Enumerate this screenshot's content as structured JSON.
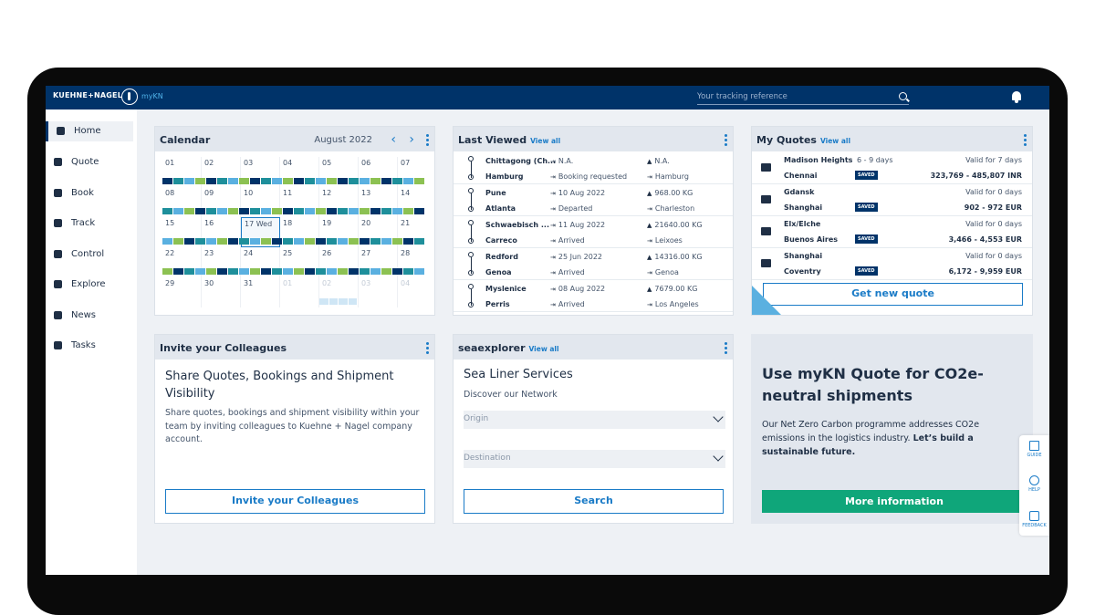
{
  "topbar": {
    "brand": "KUEHNE+NAGEL",
    "product": "myKN",
    "search_placeholder": "Your tracking reference"
  },
  "sidebar": {
    "items": [
      {
        "label": "Home",
        "icon": "home-icon",
        "active": true
      },
      {
        "label": "Quote",
        "icon": "calculator-icon"
      },
      {
        "label": "Book",
        "icon": "book-icon"
      },
      {
        "label": "Track",
        "icon": "track-icon"
      },
      {
        "label": "Control",
        "icon": "control-icon"
      },
      {
        "label": "Explore",
        "icon": "compass-icon"
      },
      {
        "label": "News",
        "icon": "news-icon"
      },
      {
        "label": "Tasks",
        "icon": "tasks-icon"
      }
    ]
  },
  "calendar": {
    "title": "Calendar",
    "month": "August 2022",
    "prev": "‹",
    "next": "›",
    "weeks": [
      [
        "01",
        "02",
        "03",
        "04",
        "05",
        "06",
        "07"
      ],
      [
        "08",
        "09",
        "10",
        "11",
        "12",
        "13",
        "14"
      ],
      [
        "15",
        "16",
        "17 Wed",
        "18",
        "19",
        "20",
        "21"
      ],
      [
        "22",
        "23",
        "24",
        "25",
        "26",
        "27",
        "28"
      ],
      [
        "29",
        "30",
        "31",
        "01",
        "02",
        "03",
        "04"
      ]
    ],
    "today": "17 Wed",
    "colors": {
      "dark": "#003369",
      "teal": "#1e8f9b",
      "light": "#5ab0e0",
      "green": "#8cc152"
    }
  },
  "last_viewed": {
    "title": "Last Viewed",
    "view_all": "View all",
    "rows": [
      {
        "from": "Chittagong (Ch...",
        "to": "Hamburg",
        "status1": "N.A.",
        "status2": "Booking requested",
        "right1": "N.A.",
        "right2": "Hamburg"
      },
      {
        "from": "Pune",
        "to": "Atlanta",
        "status1": "10 Aug 2022",
        "status2": "Departed",
        "right1": "968.00 KG",
        "right2": "Charleston"
      },
      {
        "from": "Schwaebisch ...",
        "to": "Carreco",
        "status1": "11 Aug 2022",
        "status2": "Arrived",
        "right1": "21640.00 KG",
        "right2": "Leixoes"
      },
      {
        "from": "Redford",
        "to": "Genoa",
        "status1": "25 Jun 2022",
        "status2": "Arrived",
        "right1": "14316.00 KG",
        "right2": "Genoa"
      },
      {
        "from": "Myslenice",
        "to": "Perris",
        "status1": "08 Aug 2022",
        "status2": "Arrived",
        "right1": "7679.00 KG",
        "right2": "Los Angeles"
      }
    ]
  },
  "quotes": {
    "title": "My Quotes",
    "view_all": "View all",
    "saved_label": "SAVED",
    "rows": [
      {
        "from": "Madison Heights",
        "to": "Chennai",
        "days": "6 - 9 days",
        "valid": "Valid for 7 days",
        "price": "323,769 - 485,807 INR",
        "icon": "plane-icon"
      },
      {
        "from": "Gdansk",
        "to": "Shanghai",
        "days": "",
        "valid": "Valid for 0 days",
        "price": "902 - 972 EUR",
        "icon": "ship-icon"
      },
      {
        "from": "Elx/Elche",
        "to": "Buenos Aires",
        "days": "",
        "valid": "Valid for 0 days",
        "price": "3,466 - 4,553 EUR",
        "icon": "ship-icon"
      },
      {
        "from": "Shanghai",
        "to": "Coventry",
        "days": "",
        "valid": "Valid for 0 days",
        "price": "6,172 - 9,959 EUR",
        "icon": "ship-icon"
      }
    ],
    "button": "Get new quote"
  },
  "invite": {
    "title": "Invite your Colleagues",
    "heading": "Share Quotes, Bookings and Shipment Visibility",
    "text": "Share quotes, bookings and shipment visibility within your team by inviting colleagues to Kuehne + Nagel company account.",
    "button": "Invite your Colleagues"
  },
  "seaexplorer": {
    "title": "seaexplorer",
    "view_all": "View all",
    "heading": "Sea Liner Services",
    "subheading": "Discover our Network",
    "origin": "Origin",
    "destination": "Destination",
    "button": "Search"
  },
  "promo": {
    "title": "Use myKN Quote for CO2e-neutral shipments",
    "text": "Our Net Zero Carbon programme addresses CO2e emissions in the logistics industry.",
    "text_bold": "Let’s build a sustainable future.",
    "button": "More information"
  },
  "tools": {
    "guide": "GUIDE",
    "help": "HELP",
    "feedback": "FEEDBACK"
  }
}
